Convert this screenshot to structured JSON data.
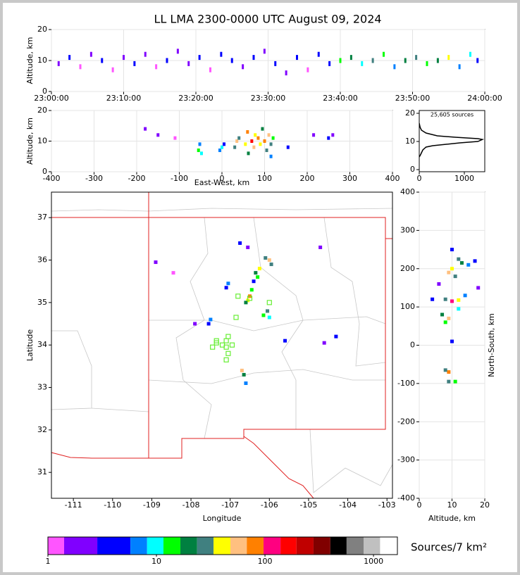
{
  "title": "LL LMA 2300-0000 UTC August 09, 2024",
  "colorbar": {
    "label": "Sources/7 km²",
    "bounds": [
      1,
      1.41,
      2.85,
      5.76,
      8.2,
      11.6,
      16.6,
      23.7,
      33.6,
      48,
      68,
      97,
      139,
      195,
      280,
      400,
      565,
      810,
      1150,
      1660
    ],
    "colors": [
      "#ff55ff",
      "#8000ff",
      "#0000ff",
      "#0080ff",
      "#00ffff",
      "#00ff00",
      "#008040",
      "#408080",
      "#ffff00",
      "#ffc080",
      "#ff8000",
      "#ff0080",
      "#ff0000",
      "#c00000",
      "#800000",
      "#000000",
      "#808080",
      "#c0c0c0",
      "#ffffff"
    ],
    "ticks": [
      1,
      10,
      100,
      1000
    ]
  },
  "chart_data": [
    {
      "type": "scatter",
      "ylabel": "Altitude, km",
      "grid": true,
      "xlim": [
        "23:00:00",
        "24:00:00"
      ],
      "xticks": [
        "23:00:00",
        "23:10:00",
        "23:20:00",
        "23:30:00",
        "23:40:00",
        "23:50:00",
        "24:00:00"
      ],
      "ylim": [
        0,
        20
      ],
      "yticks": [
        0,
        10,
        20
      ],
      "series": [
        {
          "x": [
            "23:01:00",
            "23:02:30",
            "23:04:00",
            "23:05:30",
            "23:07:00",
            "23:08:30",
            "23:10:00",
            "23:11:30",
            "23:13:00",
            "23:14:30",
            "23:16:00",
            "23:17:30",
            "23:19:00",
            "23:20:30",
            "23:22:00",
            "23:23:30",
            "23:25:00",
            "23:26:30",
            "23:28:00",
            "23:29:30",
            "23:31:00",
            "23:32:30",
            "23:34:00",
            "23:35:30",
            "23:37:00",
            "23:38:30",
            "23:40:00",
            "23:41:30",
            "23:43:00",
            "23:44:30",
            "23:46:00",
            "23:47:30",
            "23:49:00",
            "23:50:30",
            "23:52:00",
            "23:53:30",
            "23:55:00",
            "23:56:30",
            "23:58:00",
            "23:59:00"
          ],
          "y": [
            9,
            11,
            8,
            12,
            10,
            7,
            11,
            9,
            12,
            8,
            10,
            13,
            9,
            11,
            7,
            12,
            10,
            8,
            11,
            13,
            9,
            6,
            11,
            7,
            12,
            9,
            10,
            11,
            9,
            10,
            12,
            8,
            10,
            11,
            9,
            10,
            11,
            8,
            12,
            10
          ],
          "sources": [
            2,
            3,
            1,
            2,
            3,
            1,
            2,
            4,
            2,
            1,
            3,
            2,
            2,
            4,
            1,
            3,
            5,
            2,
            3,
            2,
            4,
            2,
            3,
            1,
            4,
            3,
            12,
            20,
            9,
            25,
            14,
            6,
            18,
            30,
            15,
            22,
            40,
            7,
            9,
            3
          ]
        }
      ]
    },
    {
      "type": "scatter",
      "xlabel": "East-West, km",
      "ylabel": "Altitude, km",
      "grid": true,
      "xlim": [
        -400,
        400
      ],
      "xticks": [
        -400,
        -300,
        -200,
        -100,
        0,
        100,
        200,
        300,
        400
      ],
      "ylim": [
        0,
        20
      ],
      "yticks": [
        0,
        10,
        20
      ],
      "series": [
        {
          "x": [
            -180,
            -150,
            -110,
            -55,
            -52,
            -48,
            -5,
            0,
            5,
            30,
            35,
            40,
            55,
            60,
            62,
            70,
            75,
            78,
            85,
            90,
            95,
            100,
            105,
            110,
            115,
            120,
            115,
            155,
            215,
            250,
            260
          ],
          "y": [
            14,
            12,
            11,
            7,
            9,
            6,
            7,
            8,
            9,
            8,
            10,
            11,
            9,
            13,
            6,
            10,
            8,
            12,
            11,
            9,
            14,
            10,
            7,
            12,
            9,
            11,
            5,
            8,
            12,
            11,
            12
          ],
          "sources": [
            2,
            2,
            1,
            15,
            8,
            10,
            6,
            9,
            5,
            30,
            60,
            25,
            40,
            80,
            20,
            150,
            50,
            35,
            90,
            45,
            20,
            70,
            25,
            55,
            30,
            15,
            8,
            4,
            2,
            3,
            2
          ]
        }
      ]
    },
    {
      "type": "line",
      "annotation": "25,605 sources",
      "xlim": [
        0,
        1453
      ],
      "xticks": [
        0,
        1000
      ],
      "ylim": [
        -0.75,
        21
      ],
      "yticks": [
        0,
        10,
        20
      ],
      "series": [
        {
          "color": "#000000",
          "x": [
            0,
            20,
            50,
            150,
            400,
            800,
            1300,
            1400,
            1300,
            900,
            600,
            300,
            150,
            80,
            50,
            20,
            0
          ],
          "y": [
            16.5,
            15,
            14,
            13,
            12,
            11.5,
            11,
            10.7,
            10,
            9.5,
            9,
            8.5,
            8,
            7,
            6,
            5,
            4.5
          ]
        }
      ]
    },
    {
      "type": "scatter",
      "xlabel": "Longitude",
      "ylabel": "Latitude",
      "xlim": [
        -111.56,
        -102.86
      ],
      "xticks": [
        -111,
        -110,
        -109,
        -108,
        -107,
        -106,
        -105,
        -104,
        -103
      ],
      "ylim": [
        30.39,
        37.6
      ],
      "yticks": [
        31,
        32,
        33,
        34,
        35,
        36,
        37
      ],
      "series": [
        {
          "x": [
            -106.0,
            -105.95,
            -106.1,
            -106.25,
            -106.35,
            -106.3,
            -106.45,
            -106.5,
            -106.55,
            -106.6,
            -106.05,
            -106.15,
            -106.0,
            -107.05,
            -107.1,
            -107.5,
            -107.55,
            -106.7,
            -106.65,
            -106.6,
            -105.6,
            -104.3,
            -104.7,
            -108.9,
            -106.75,
            -106.55,
            -107.9,
            -108.45,
            -104.6,
            -106.4
          ],
          "y": [
            36.0,
            35.9,
            36.05,
            35.8,
            35.7,
            35.6,
            35.3,
            35.15,
            35.05,
            35.0,
            34.8,
            34.7,
            34.65,
            35.45,
            35.35,
            34.6,
            34.5,
            33.4,
            33.3,
            33.1,
            34.1,
            34.2,
            36.3,
            35.95,
            36.4,
            36.3,
            34.5,
            35.7,
            34.05,
            35.5
          ],
          "sources": [
            60,
            25,
            30,
            45,
            20,
            12,
            15,
            90,
            40,
            20,
            30,
            15,
            10,
            6,
            4,
            8,
            5,
            50,
            20,
            6,
            3,
            4,
            2,
            2,
            3,
            2,
            2,
            1,
            2,
            5
          ]
        },
        {
          "color": "#66ee33",
          "x": [
            -106.8,
            -106.0,
            -106.85,
            -107.05,
            -107.1,
            -107.2,
            -107.35,
            -107.45,
            -107.1,
            -106.95,
            -107.05,
            -107.1,
            -106.5,
            -107.35
          ],
          "y": [
            35.15,
            35.0,
            34.65,
            34.2,
            34.1,
            34.0,
            34.05,
            33.95,
            33.95,
            34.0,
            33.8,
            33.65,
            35.1,
            34.1
          ]
        }
      ]
    },
    {
      "type": "scatter",
      "xlabel": "Altitude, km",
      "ylabel": "North-South, km",
      "grid": true,
      "xlim": [
        0,
        20
      ],
      "xticks": [
        0,
        10,
        20
      ],
      "ylim": [
        -400,
        400
      ],
      "yticks": [
        -400,
        -300,
        -200,
        -100,
        0,
        100,
        200,
        300,
        400
      ],
      "series": [
        {
          "x": [
            10,
            12,
            9,
            11,
            13,
            15,
            18,
            8,
            10,
            12,
            7,
            9,
            8,
            4,
            10,
            9,
            8,
            11,
            9,
            6,
            14,
            10,
            12,
            17
          ],
          "y": [
            200,
            225,
            190,
            180,
            215,
            210,
            150,
            120,
            115,
            118,
            80,
            70,
            60,
            120,
            10,
            -70,
            -65,
            -95,
            -95,
            160,
            130,
            250,
            95,
            220
          ],
          "sources": [
            40,
            30,
            60,
            25,
            20,
            6,
            2,
            30,
            120,
            45,
            20,
            50,
            15,
            3,
            4,
            80,
            25,
            15,
            30,
            2,
            8,
            3,
            10,
            3
          ]
        }
      ]
    }
  ]
}
